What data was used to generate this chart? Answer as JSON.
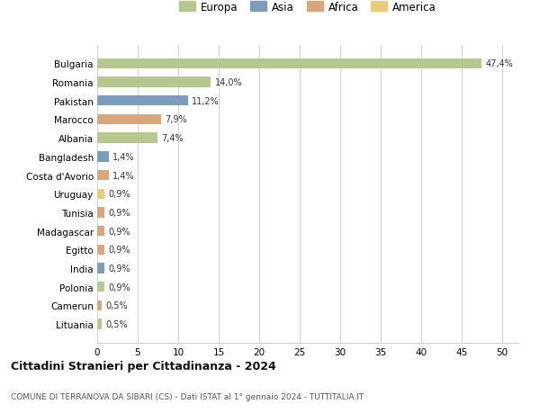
{
  "categories": [
    "Bulgaria",
    "Romania",
    "Pakistan",
    "Marocco",
    "Albania",
    "Bangladesh",
    "Costa d'Avorio",
    "Uruguay",
    "Tunisia",
    "Madagascar",
    "Egitto",
    "India",
    "Polonia",
    "Camerun",
    "Lituania"
  ],
  "values": [
    47.4,
    14.0,
    11.2,
    7.9,
    7.4,
    1.4,
    1.4,
    0.9,
    0.9,
    0.9,
    0.9,
    0.9,
    0.9,
    0.5,
    0.5
  ],
  "labels": [
    "47,4%",
    "14,0%",
    "11,2%",
    "7,9%",
    "7,4%",
    "1,4%",
    "1,4%",
    "0,9%",
    "0,9%",
    "0,9%",
    "0,9%",
    "0,9%",
    "0,9%",
    "0,5%",
    "0,5%"
  ],
  "colors": [
    "#b5c98e",
    "#b5c98e",
    "#7b9cba",
    "#d9a57a",
    "#b5c98e",
    "#7b9cba",
    "#d9a57a",
    "#e8cc7a",
    "#d9a57a",
    "#d9a57a",
    "#d9a57a",
    "#7b9cba",
    "#b5c98e",
    "#d9a57a",
    "#b5c98e"
  ],
  "continent_colors": {
    "Europa": "#b5c98e",
    "Asia": "#7b9cba",
    "Africa": "#d9a57a",
    "America": "#e8cc7a"
  },
  "title1": "Cittadini Stranieri per Cittadinanza - 2024",
  "title2": "COMUNE DI TERRANOVA DA SIBARI (CS) - Dati ISTAT al 1° gennaio 2024 - TUTTITALIA.IT",
  "xlim": [
    0,
    52
  ],
  "xticks": [
    0,
    5,
    10,
    15,
    20,
    25,
    30,
    35,
    40,
    45,
    50
  ],
  "bg_color": "#ffffff",
  "grid_color": "#d0d0d0"
}
